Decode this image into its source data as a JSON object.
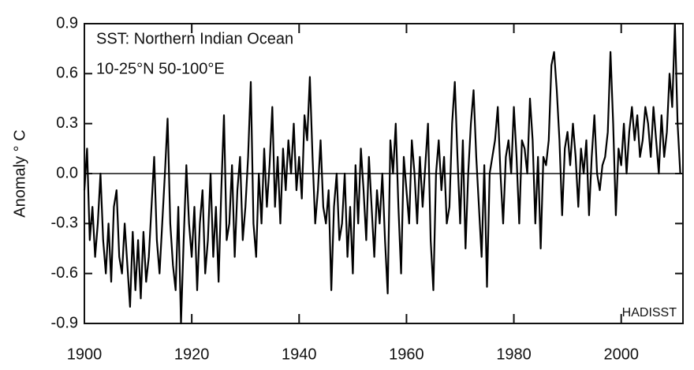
{
  "chart_data": {
    "type": "line",
    "title": "SST:  Northern Indian Ocean",
    "subtitle": "10-25°N 50-100°E",
    "annotation": "HADISST",
    "y_label": "Anomaly  ° C",
    "xlim": [
      1900,
      2011.5
    ],
    "ylim": [
      -0.9,
      0.9
    ],
    "xticks": [
      1900,
      1920,
      1940,
      1960,
      1980,
      2000
    ],
    "yticks": [
      0.9,
      0.6,
      0.3,
      {
        "value": 0,
        "label": "0.0"
      },
      -0.3,
      -0.6,
      -0.9
    ],
    "zero_line": true,
    "series": [
      {
        "color": "#000000",
        "x": [
          1900,
          1900.5,
          1901,
          1901.5,
          1902,
          1902.5,
          1903,
          1903.5,
          1904,
          1904.5,
          1905,
          1905.5,
          1906,
          1906.5,
          1907,
          1907.5,
          1908,
          1908.5,
          1909,
          1909.5,
          1910,
          1910.5,
          1911,
          1911.5,
          1912,
          1912.5,
          1913,
          1913.5,
          1914,
          1914.5,
          1915,
          1915.5,
          1916,
          1916.5,
          1917,
          1917.5,
          1918,
          1918.5,
          1919,
          1919.5,
          1920,
          1920.5,
          1921,
          1921.5,
          1922,
          1922.5,
          1923,
          1923.5,
          1924,
          1924.5,
          1925,
          1925.5,
          1926,
          1926.5,
          1927,
          1927.5,
          1928,
          1928.5,
          1929,
          1929.5,
          1930,
          1930.5,
          1931,
          1931.5,
          1932,
          1932.5,
          1933,
          1933.5,
          1934,
          1934.5,
          1935,
          1935.5,
          1936,
          1936.5,
          1937,
          1937.5,
          1938,
          1938.5,
          1939,
          1939.5,
          1940,
          1940.5,
          1941,
          1941.5,
          1942,
          1942.5,
          1943,
          1943.5,
          1944,
          1944.5,
          1945,
          1945.5,
          1946,
          1946.5,
          1947,
          1947.5,
          1948,
          1948.5,
          1949,
          1949.5,
          1950,
          1950.5,
          1951,
          1951.5,
          1952,
          1952.5,
          1953,
          1953.5,
          1954,
          1954.5,
          1955,
          1955.5,
          1956,
          1956.5,
          1957,
          1957.5,
          1958,
          1958.5,
          1959,
          1959.5,
          1960,
          1960.5,
          1961,
          1961.5,
          1962,
          1962.5,
          1963,
          1963.5,
          1964,
          1964.5,
          1965,
          1965.5,
          1966,
          1966.5,
          1967,
          1967.5,
          1968,
          1968.5,
          1969,
          1969.5,
          1970,
          1970.5,
          1971,
          1971.5,
          1972,
          1972.5,
          1973,
          1973.5,
          1974,
          1974.5,
          1975,
          1975.5,
          1976,
          1976.5,
          1977,
          1977.5,
          1978,
          1978.5,
          1979,
          1979.5,
          1980,
          1980.5,
          1981,
          1981.5,
          1982,
          1982.5,
          1983,
          1983.5,
          1984,
          1984.5,
          1985,
          1985.5,
          1986,
          1986.5,
          1987,
          1987.5,
          1988,
          1988.5,
          1989,
          1989.5,
          1990,
          1990.5,
          1991,
          1991.5,
          1992,
          1992.5,
          1993,
          1993.5,
          1994,
          1994.5,
          1995,
          1995.5,
          1996,
          1996.5,
          1997,
          1997.5,
          1998,
          1998.5,
          1999,
          1999.5,
          2000,
          2000.5,
          2001,
          2001.5,
          2002,
          2002.5,
          2003,
          2003.5,
          2004,
          2004.5,
          2005,
          2005.5,
          2006,
          2006.5,
          2007,
          2007.5,
          2008,
          2008.5,
          2009,
          2009.5,
          2010,
          2010.5,
          2011
        ],
        "values": [
          -0.1,
          0.15,
          -0.4,
          -0.2,
          -0.5,
          -0.3,
          0.0,
          -0.4,
          -0.6,
          -0.3,
          -0.65,
          -0.2,
          -0.1,
          -0.5,
          -0.6,
          -0.3,
          -0.55,
          -0.8,
          -0.35,
          -0.7,
          -0.4,
          -0.75,
          -0.35,
          -0.65,
          -0.5,
          -0.2,
          0.1,
          -0.4,
          -0.6,
          -0.3,
          0.0,
          0.33,
          -0.3,
          -0.55,
          -0.7,
          -0.2,
          -0.9,
          -0.4,
          0.05,
          -0.3,
          -0.5,
          -0.2,
          -0.7,
          -0.3,
          -0.1,
          -0.6,
          -0.4,
          0.0,
          -0.5,
          -0.2,
          -0.65,
          -0.1,
          0.35,
          -0.4,
          -0.3,
          0.05,
          -0.5,
          -0.1,
          0.1,
          -0.4,
          -0.2,
          0.1,
          0.55,
          -0.3,
          -0.5,
          0.0,
          -0.3,
          0.15,
          -0.2,
          0.05,
          0.4,
          -0.2,
          0.1,
          -0.3,
          0.15,
          -0.1,
          0.2,
          0.0,
          0.3,
          -0.1,
          0.1,
          -0.15,
          0.35,
          0.2,
          0.58,
          0.1,
          -0.3,
          -0.1,
          0.2,
          -0.2,
          -0.3,
          -0.1,
          -0.7,
          -0.2,
          0.0,
          -0.4,
          -0.3,
          0.0,
          -0.5,
          -0.2,
          -0.6,
          0.05,
          -0.3,
          0.15,
          -0.1,
          -0.4,
          0.1,
          -0.2,
          -0.5,
          -0.1,
          -0.3,
          0.0,
          -0.4,
          -0.72,
          0.2,
          0.0,
          0.3,
          -0.2,
          -0.6,
          0.1,
          -0.1,
          -0.3,
          0.2,
          0.0,
          -0.3,
          0.1,
          -0.2,
          0.05,
          0.3,
          -0.4,
          -0.7,
          0.0,
          0.2,
          -0.1,
          0.1,
          -0.3,
          -0.2,
          0.3,
          0.55,
          0.1,
          -0.3,
          0.2,
          -0.45,
          0.0,
          0.3,
          0.5,
          0.1,
          -0.2,
          -0.5,
          0.05,
          -0.68,
          0.0,
          0.1,
          0.2,
          0.4,
          0.0,
          -0.3,
          0.1,
          0.2,
          0.0,
          0.4,
          0.1,
          -0.3,
          0.2,
          0.15,
          0.0,
          0.45,
          0.2,
          -0.3,
          0.1,
          -0.45,
          0.1,
          0.05,
          0.2,
          0.65,
          0.73,
          0.5,
          0.2,
          -0.25,
          0.15,
          0.25,
          0.05,
          0.3,
          0.1,
          -0.2,
          0.15,
          0.0,
          0.2,
          -0.25,
          0.1,
          0.35,
          0.0,
          -0.1,
          0.05,
          0.1,
          0.25,
          0.73,
          0.3,
          -0.25,
          0.15,
          0.05,
          0.3,
          0.0,
          0.25,
          0.4,
          0.2,
          0.35,
          0.1,
          0.2,
          0.4,
          0.3,
          0.1,
          0.4,
          0.2,
          0.0,
          0.35,
          0.1,
          0.25,
          0.6,
          0.4,
          0.9,
          0.3,
          0.0
        ]
      }
    ]
  }
}
